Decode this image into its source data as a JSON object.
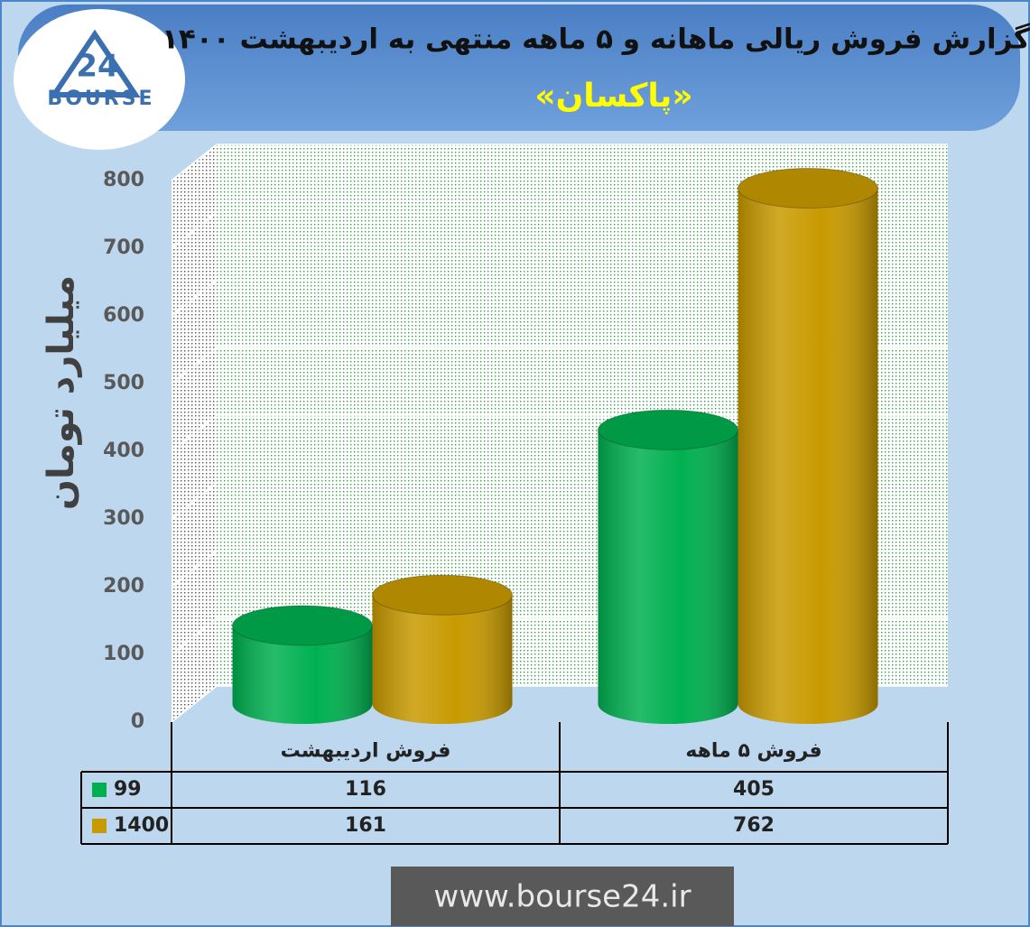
{
  "chart_data": {
    "type": "bar3d",
    "title": "گزارش فروش ریالی ماهانه و ۵ ماهه منتهی به اردیبهشت ۱۴۰۰",
    "subtitle": "«پاکسان»",
    "y_label": "میلیارد تومان",
    "logo_text": "BOURSE",
    "logo_number": "24",
    "footer": "www.bourse24.ir",
    "categories": [
      "فروش اردیبهشت",
      "فروش ۵ ماهه"
    ],
    "series": [
      {
        "name": "99",
        "color": "#00b050",
        "values": [
          116,
          405
        ]
      },
      {
        "name": "1400",
        "color": "#c89a00",
        "values": [
          161,
          762
        ]
      }
    ],
    "ylim": [
      0,
      800
    ],
    "yticks": [
      0,
      100,
      200,
      300,
      400,
      500,
      600,
      700,
      800
    ],
    "grid": true
  }
}
